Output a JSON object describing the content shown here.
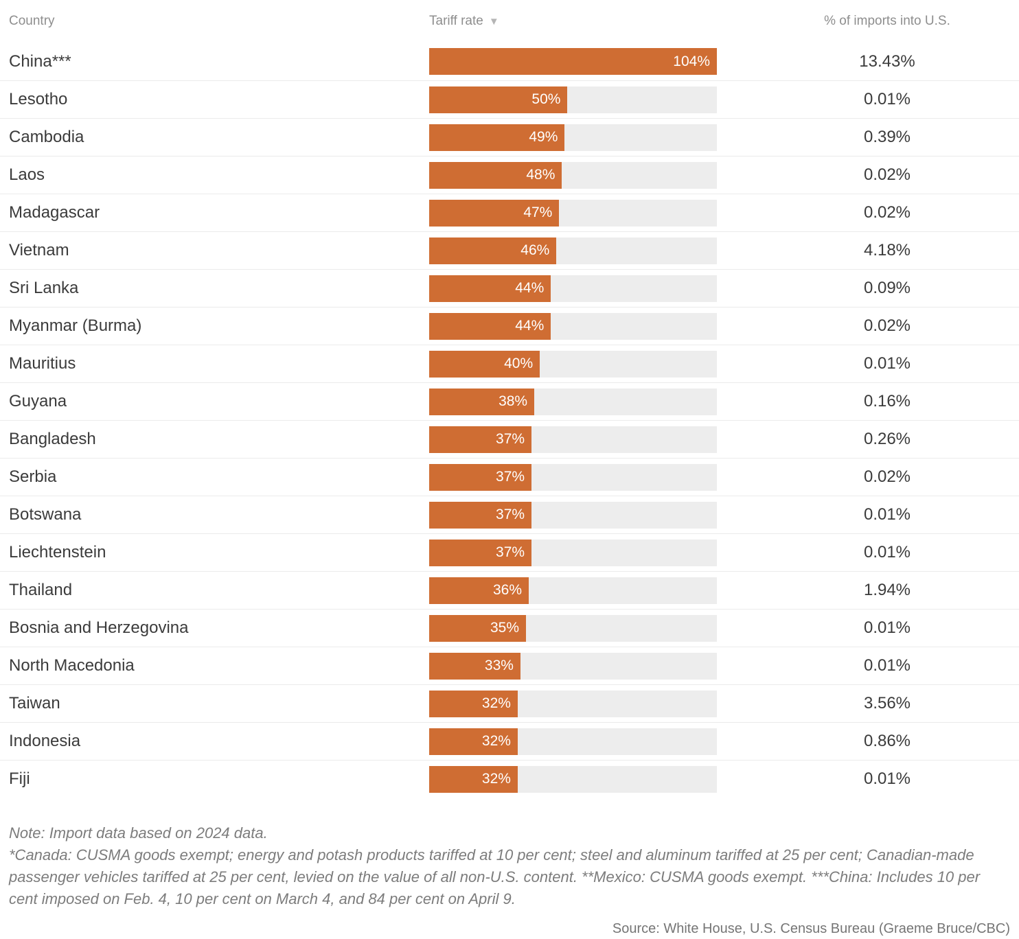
{
  "table": {
    "columns": [
      {
        "label": "Country"
      },
      {
        "label": "Tariff rate",
        "sort_icon": "▼",
        "sorted": "descending"
      },
      {
        "label": "% of imports into U.S."
      }
    ]
  },
  "rows": [
    {
      "country": "China***",
      "tariff": 104,
      "tariff_label": "104%",
      "imports_label": "13.43%"
    },
    {
      "country": "Lesotho",
      "tariff": 50,
      "tariff_label": "50%",
      "imports_label": "0.01%"
    },
    {
      "country": "Cambodia",
      "tariff": 49,
      "tariff_label": "49%",
      "imports_label": "0.39%"
    },
    {
      "country": "Laos",
      "tariff": 48,
      "tariff_label": "48%",
      "imports_label": "0.02%"
    },
    {
      "country": "Madagascar",
      "tariff": 47,
      "tariff_label": "47%",
      "imports_label": "0.02%"
    },
    {
      "country": "Vietnam",
      "tariff": 46,
      "tariff_label": "46%",
      "imports_label": "4.18%"
    },
    {
      "country": "Sri Lanka",
      "tariff": 44,
      "tariff_label": "44%",
      "imports_label": "0.09%"
    },
    {
      "country": "Myanmar (Burma)",
      "tariff": 44,
      "tariff_label": "44%",
      "imports_label": "0.02%"
    },
    {
      "country": "Mauritius",
      "tariff": 40,
      "tariff_label": "40%",
      "imports_label": "0.01%"
    },
    {
      "country": "Guyana",
      "tariff": 38,
      "tariff_label": "38%",
      "imports_label": "0.16%"
    },
    {
      "country": "Bangladesh",
      "tariff": 37,
      "tariff_label": "37%",
      "imports_label": "0.26%"
    },
    {
      "country": "Serbia",
      "tariff": 37,
      "tariff_label": "37%",
      "imports_label": "0.02%"
    },
    {
      "country": "Botswana",
      "tariff": 37,
      "tariff_label": "37%",
      "imports_label": "0.01%"
    },
    {
      "country": "Liechtenstein",
      "tariff": 37,
      "tariff_label": "37%",
      "imports_label": "0.01%"
    },
    {
      "country": "Thailand",
      "tariff": 36,
      "tariff_label": "36%",
      "imports_label": "1.94%"
    },
    {
      "country": "Bosnia and Herzegovina",
      "tariff": 35,
      "tariff_label": "35%",
      "imports_label": "0.01%"
    },
    {
      "country": "North Macedonia",
      "tariff": 33,
      "tariff_label": "33%",
      "imports_label": "0.01%"
    },
    {
      "country": "Taiwan",
      "tariff": 32,
      "tariff_label": "32%",
      "imports_label": "3.56%"
    },
    {
      "country": "Indonesia",
      "tariff": 32,
      "tariff_label": "32%",
      "imports_label": "0.86%"
    },
    {
      "country": "Fiji",
      "tariff": 32,
      "tariff_label": "32%",
      "imports_label": "0.01%"
    }
  ],
  "chart_data": {
    "type": "bar",
    "orientation": "horizontal",
    "title": "",
    "categories": [
      "China***",
      "Lesotho",
      "Cambodia",
      "Laos",
      "Madagascar",
      "Vietnam",
      "Sri Lanka",
      "Myanmar (Burma)",
      "Mauritius",
      "Guyana",
      "Bangladesh",
      "Serbia",
      "Botswana",
      "Liechtenstein",
      "Thailand",
      "Bosnia and Herzegovina",
      "North Macedonia",
      "Taiwan",
      "Indonesia",
      "Fiji"
    ],
    "series": [
      {
        "name": "Tariff rate",
        "unit": "%",
        "values": [
          104,
          50,
          49,
          48,
          47,
          46,
          44,
          44,
          40,
          38,
          37,
          37,
          37,
          37,
          36,
          35,
          33,
          32,
          32,
          32
        ]
      },
      {
        "name": "% of imports into U.S.",
        "unit": "%",
        "values": [
          13.43,
          0.01,
          0.39,
          0.02,
          0.02,
          4.18,
          0.09,
          0.02,
          0.01,
          0.16,
          0.26,
          0.02,
          0.01,
          0.01,
          1.94,
          0.01,
          0.01,
          3.56,
          0.86,
          0.01
        ]
      }
    ],
    "xlim": [
      0,
      104
    ],
    "sort": "Tariff rate descending",
    "grid": false,
    "legend": false,
    "bar_labels": "inside-end"
  },
  "colors": {
    "bar": "#cf6d33",
    "track": "#ededed",
    "divider": "#ebebeb",
    "header_text": "#8e8e8e",
    "body_text": "#3b3b3b",
    "bar_label": "#ffffff",
    "note_text": "#7c7c7c"
  },
  "footer": {
    "note": "Note: Import data based on 2024 data.",
    "footnotes": "*Canada: CUSMA goods exempt; energy and potash products tariffed at 10 per cent; steel and aluminum tariffed at 25 per cent; Canadian-made passenger vehicles tariffed at 25 per cent, levied on the value of all non-U.S. content. **Mexico: CUSMA goods exempt. ***China: Includes 10 per cent imposed on Feb. 4, 10 per cent on March 4, and 84 per cent on April 9.",
    "source": "Source: White House, U.S. Census Bureau (Graeme Bruce/CBC)"
  }
}
